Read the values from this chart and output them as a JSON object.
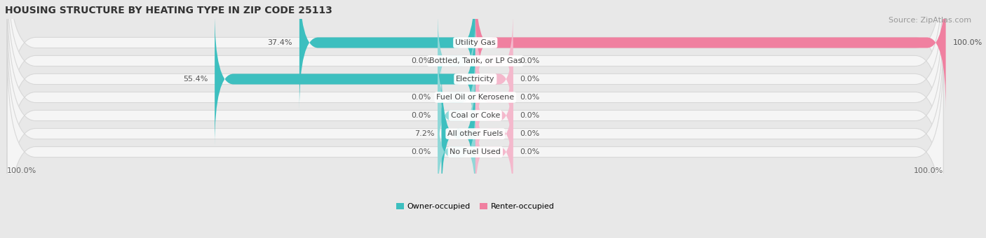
{
  "title": "HOUSING STRUCTURE BY HEATING TYPE IN ZIP CODE 25113",
  "source": "Source: ZipAtlas.com",
  "categories": [
    "Utility Gas",
    "Bottled, Tank, or LP Gas",
    "Electricity",
    "Fuel Oil or Kerosene",
    "Coal or Coke",
    "All other Fuels",
    "No Fuel Used"
  ],
  "owner_values": [
    37.4,
    0.0,
    55.4,
    0.0,
    0.0,
    7.2,
    0.0
  ],
  "renter_values": [
    100.0,
    0.0,
    0.0,
    0.0,
    0.0,
    0.0,
    0.0
  ],
  "owner_color": "#3dbfbf",
  "renter_color": "#f080a0",
  "owner_stub_color": "#90d8d8",
  "renter_stub_color": "#f4b8cc",
  "owner_label": "Owner-occupied",
  "renter_label": "Renter-occupied",
  "fig_bg_color": "#e8e8e8",
  "pill_bg_color": "#f5f5f5",
  "pill_border_color": "#d8d8d8",
  "max_value": 100.0,
  "stub_size": 8.0,
  "title_fontsize": 10,
  "cat_fontsize": 8,
  "val_fontsize": 8,
  "source_fontsize": 8,
  "legend_fontsize": 8,
  "axis_label_fontsize": 8
}
